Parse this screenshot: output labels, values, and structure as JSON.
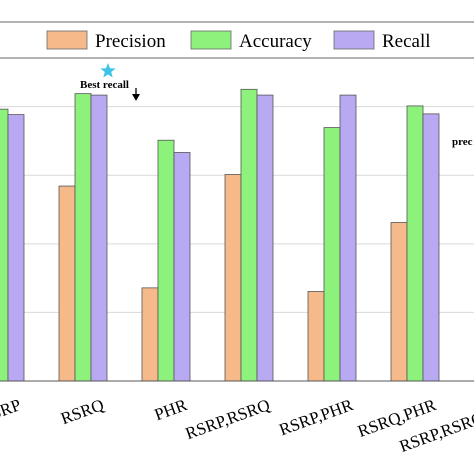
{
  "chart_data": {
    "type": "bar",
    "categories": [
      "RSRP",
      "RSRQ",
      "PHR",
      "RSRP,RSRQ",
      "RSRP,PHR",
      "RSRQ,PHR",
      "RSRP,RSRQ,PHR"
    ],
    "series": [
      {
        "name": "Precision",
        "color": "#f6b98a",
        "values": [
          null,
          0.54,
          0.258,
          0.572,
          0.248,
          0.439,
          null
        ]
      },
      {
        "name": "Accuracy",
        "color": "#8df27c",
        "values": [
          0.753,
          0.796,
          0.667,
          0.808,
          0.702,
          0.762,
          null
        ]
      },
      {
        "name": "Recall",
        "color": "#b9a8f2",
        "values": [
          0.738,
          0.792,
          0.633,
          0.792,
          0.792,
          0.74,
          null
        ]
      }
    ],
    "ylim": [
      0,
      1
    ],
    "grid": true,
    "legend_position": "top",
    "annotations": {
      "best_label": "Best recall",
      "side_label": "prec"
    }
  }
}
